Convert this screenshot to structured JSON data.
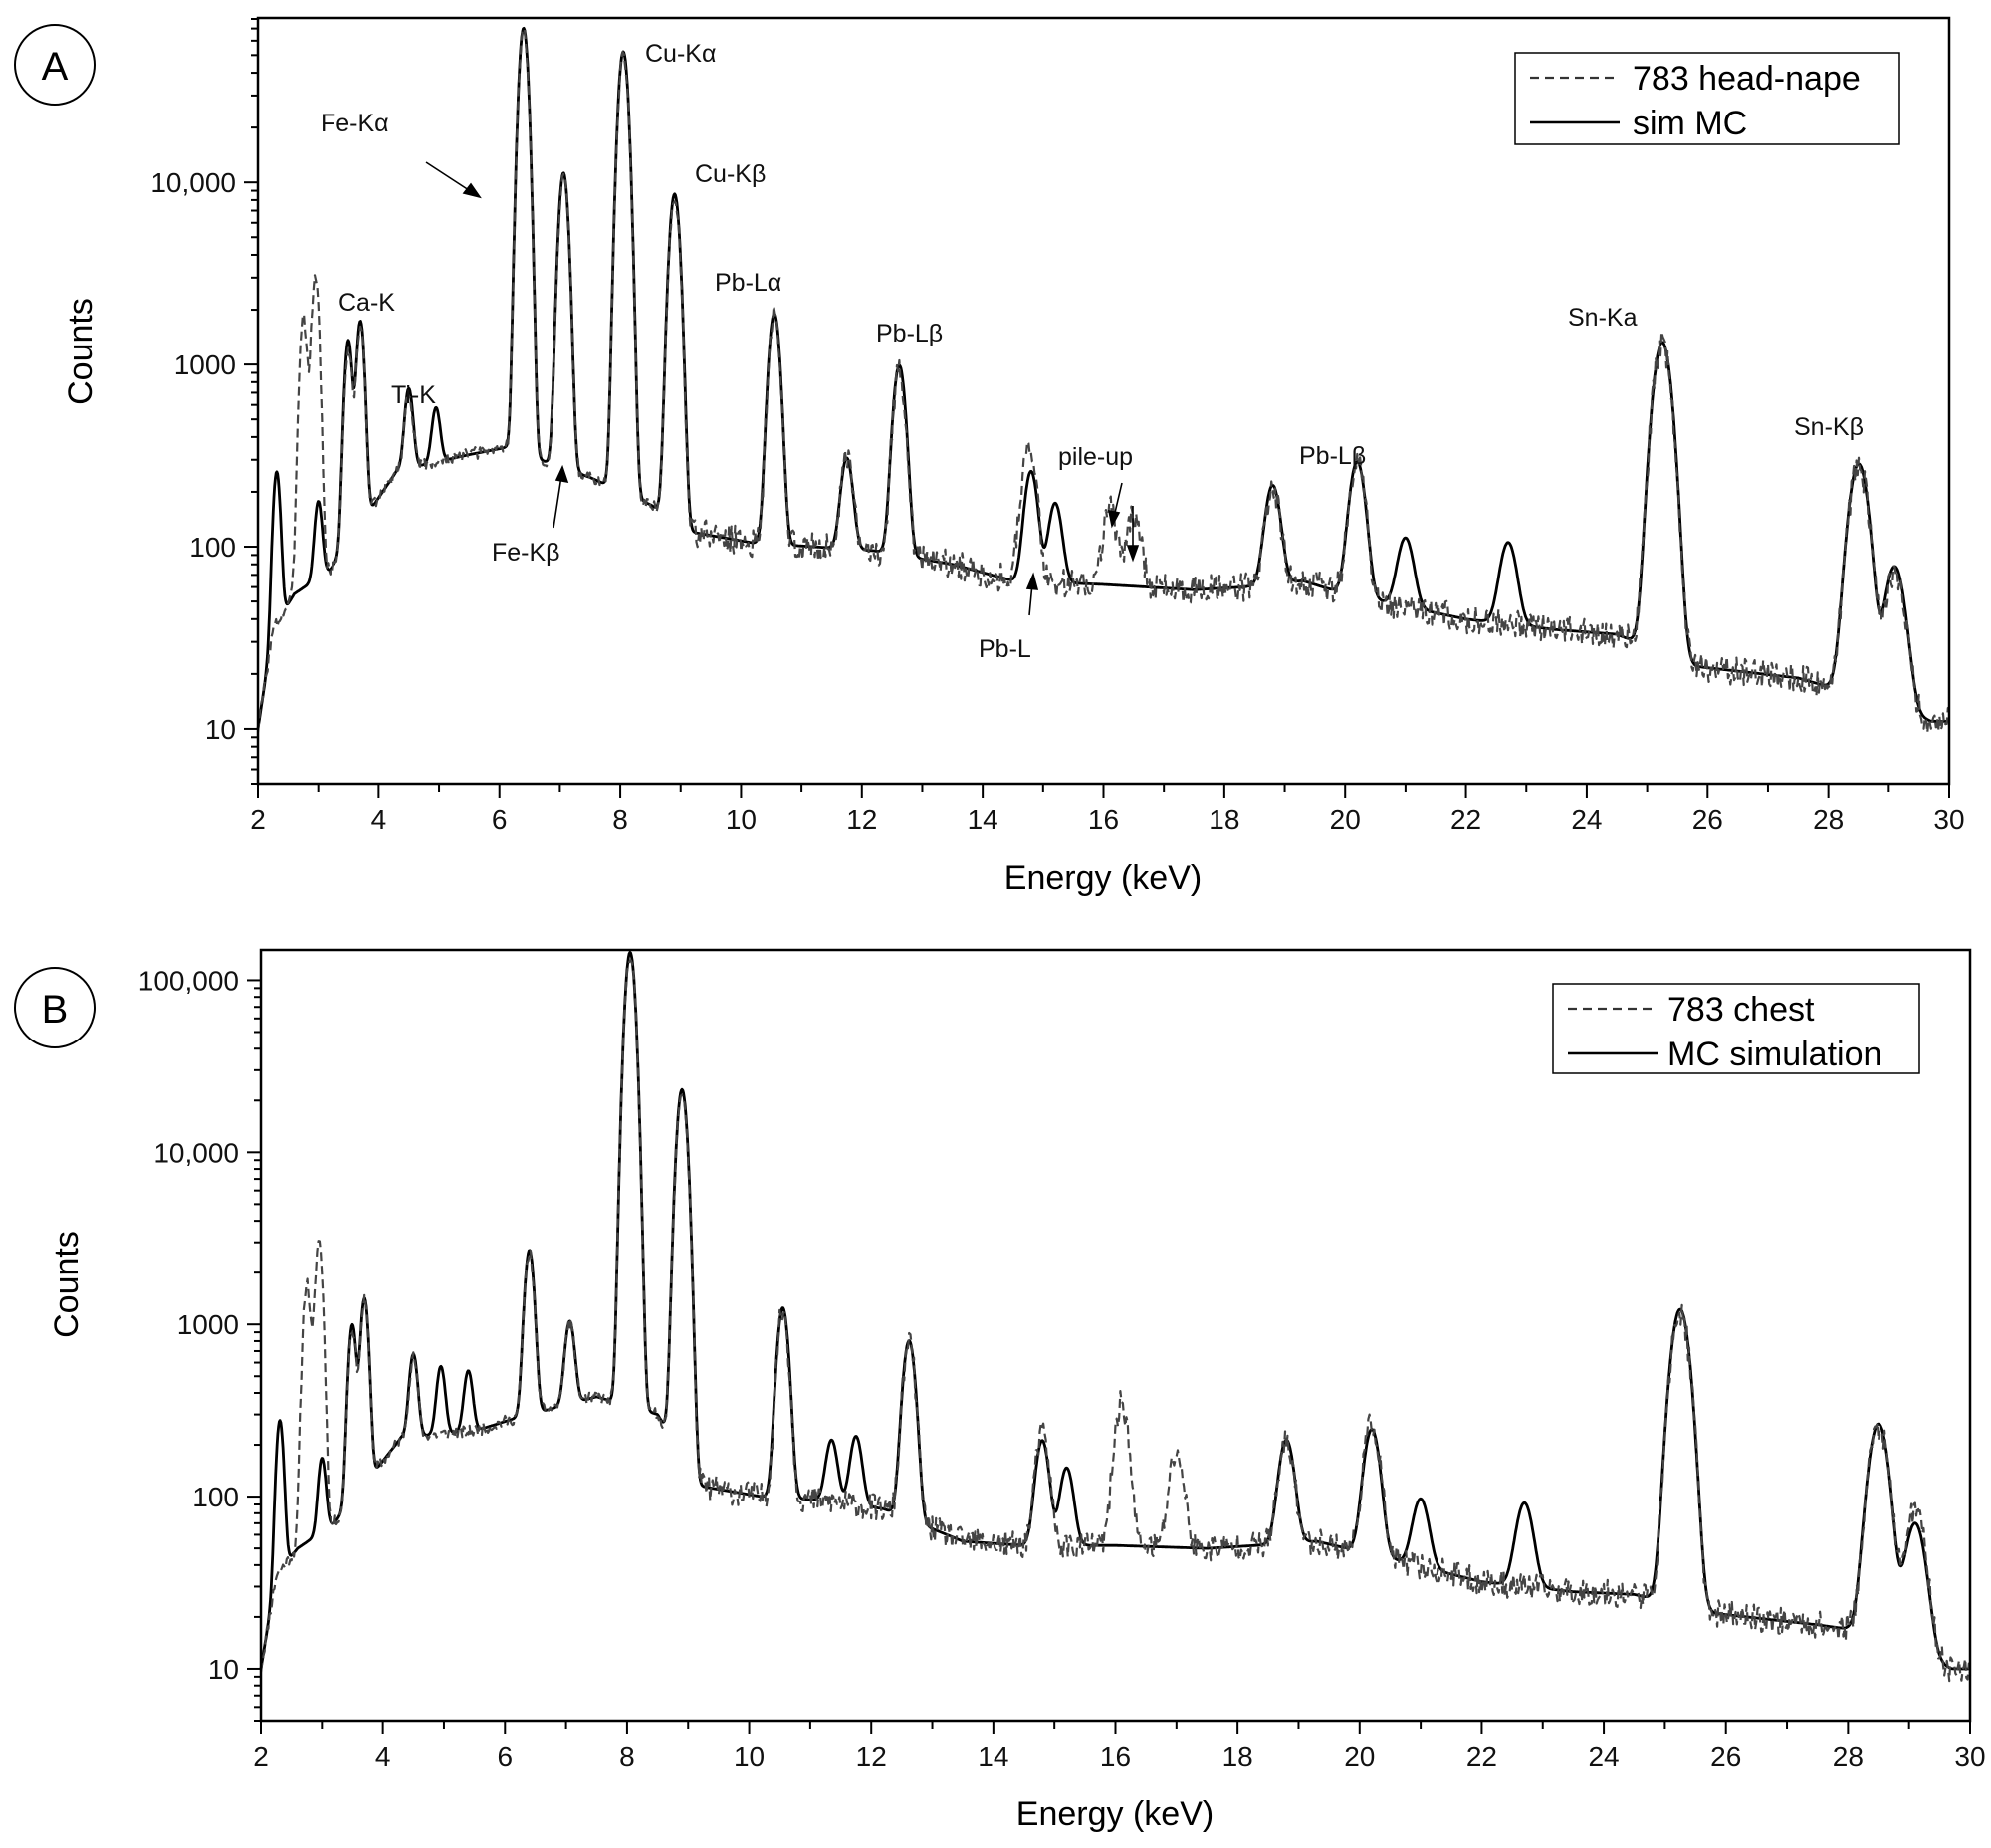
{
  "panels": [
    {
      "id": "A",
      "letter": "A",
      "xlabel": "Energy (keV)",
      "ylabel": "Counts",
      "legend": [
        {
          "label": "783 head-nape",
          "style": "dashed"
        },
        {
          "label": "sim MC",
          "style": "solid"
        }
      ],
      "annotations": [
        {
          "text": "Fe-Kα"
        },
        {
          "text": "Cu-Kα"
        },
        {
          "text": "Cu-Kβ"
        },
        {
          "text": "Ca-K"
        },
        {
          "text": "Ti-K"
        },
        {
          "text": "Fe-Kβ"
        },
        {
          "text": "Pb-Lα"
        },
        {
          "text": "Pb-Lβ"
        },
        {
          "text": "pile-up"
        },
        {
          "text": "Pb-Lβ"
        },
        {
          "text": "Pb-L"
        },
        {
          "text": "Sn-Ka"
        },
        {
          "text": "Sn-Kβ"
        }
      ]
    },
    {
      "id": "B",
      "letter": "B",
      "xlabel": "Energy (keV)",
      "ylabel": "Counts",
      "legend": [
        {
          "label": "783 chest",
          "style": "dashed"
        },
        {
          "label": "MC simulation",
          "style": "solid"
        }
      ],
      "annotations": []
    }
  ],
  "chart_data": [
    {
      "type": "line",
      "panel": "A",
      "xlabel": "Energy (keV)",
      "ylabel": "Counts",
      "xlim": [
        2,
        30
      ],
      "ylim": [
        5,
        80000
      ],
      "yscale": "log",
      "x_ticks": [
        2,
        4,
        6,
        8,
        10,
        12,
        14,
        16,
        18,
        20,
        22,
        24,
        26,
        28,
        30
      ],
      "y_ticks": [
        10,
        100,
        1000,
        10000
      ],
      "y_tick_labels": [
        "10",
        "100",
        "1000",
        "10,000"
      ],
      "grid": false,
      "legend_position": "top-right",
      "background": {
        "x": [
          2,
          2.25,
          2.6,
          3.2,
          4.3,
          5.5,
          6.1,
          7.5,
          8.5,
          9.2,
          10.2,
          11.2,
          12.2,
          13.5,
          14.5,
          16.0,
          17.5,
          18.3,
          19.3,
          20.0,
          22.0,
          23.5,
          24.5,
          25.8,
          27.5,
          28.0,
          29.7,
          30
        ],
        "counts": [
          10,
          35,
          55,
          75,
          260,
          320,
          350,
          240,
          170,
          120,
          105,
          100,
          95,
          80,
          65,
          62,
          58,
          60,
          65,
          55,
          40,
          35,
          33,
          22,
          19,
          17,
          11,
          11
        ]
      },
      "series": [
        {
          "name": "sim MC",
          "style": "solid",
          "peaks": [
            {
              "x": 2.31,
              "counts": 220
            },
            {
              "x": 3.0,
              "counts": 110
            },
            {
              "x": 3.5,
              "counts": 1250
            },
            {
              "x": 3.7,
              "counts": 1600
            },
            {
              "x": 4.5,
              "counts": 470
            },
            {
              "x": 4.95,
              "counts": 290
            },
            {
              "x": 6.4,
              "counts": 70000
            },
            {
              "x": 7.06,
              "counts": 11000
            },
            {
              "x": 8.05,
              "counts": 52000
            },
            {
              "x": 8.9,
              "counts": 8500
            },
            {
              "x": 10.55,
              "counts": 1800
            },
            {
              "x": 11.75,
              "counts": 210
            },
            {
              "x": 12.62,
              "counts": 900
            },
            {
              "x": 14.8,
              "counts": 195
            },
            {
              "x": 15.2,
              "counts": 110
            },
            {
              "x": 18.8,
              "counts": 155
            },
            {
              "x": 20.2,
              "counts": 240
            },
            {
              "x": 21.0,
              "counts": 65
            },
            {
              "x": 22.7,
              "counts": 68
            },
            {
              "x": 25.25,
              "counts": 1300
            },
            {
              "x": 28.5,
              "counts": 270
            },
            {
              "x": 29.1,
              "counts": 65
            }
          ]
        },
        {
          "name": "783 head-nape",
          "style": "dashed",
          "peaks": [
            {
              "x": 2.75,
              "counts": 1800
            },
            {
              "x": 2.95,
              "counts": 3000
            },
            {
              "x": 3.5,
              "counts": 1100
            },
            {
              "x": 3.7,
              "counts": 1500
            },
            {
              "x": 4.5,
              "counts": 430
            },
            {
              "x": 6.4,
              "counts": 68000
            },
            {
              "x": 7.06,
              "counts": 10500
            },
            {
              "x": 8.05,
              "counts": 50000
            },
            {
              "x": 8.9,
              "counts": 8000
            },
            {
              "x": 10.55,
              "counts": 1700
            },
            {
              "x": 11.75,
              "counts": 200
            },
            {
              "x": 12.62,
              "counts": 850
            },
            {
              "x": 14.7,
              "counts": 130
            },
            {
              "x": 14.8,
              "counts": 185
            },
            {
              "x": 16.1,
              "counts": 100
            },
            {
              "x": 16.5,
              "counts": 90
            },
            {
              "x": 18.8,
              "counts": 145
            },
            {
              "x": 20.2,
              "counts": 230
            },
            {
              "x": 25.25,
              "counts": 1250
            },
            {
              "x": 28.5,
              "counts": 260
            },
            {
              "x": 29.1,
              "counts": 60
            }
          ]
        }
      ]
    },
    {
      "type": "line",
      "panel": "B",
      "xlabel": "Energy (keV)",
      "ylabel": "Counts",
      "xlim": [
        2,
        30
      ],
      "ylim": [
        5,
        150000
      ],
      "yscale": "log",
      "x_ticks": [
        2,
        4,
        6,
        8,
        10,
        12,
        14,
        16,
        18,
        20,
        22,
        24,
        26,
        28,
        30
      ],
      "y_ticks": [
        10,
        100,
        1000,
        10000,
        100000
      ],
      "y_tick_labels": [
        "10",
        "100",
        "1000",
        "10,000",
        "100,000"
      ],
      "grid": false,
      "legend_position": "top-right",
      "background": {
        "x": [
          2,
          2.25,
          2.6,
          3.2,
          4.3,
          5.5,
          6.1,
          7.5,
          8.5,
          9.2,
          10.2,
          11.2,
          12.2,
          13.5,
          14.5,
          16.0,
          17.5,
          18.3,
          19.3,
          20.0,
          22.0,
          23.5,
          24.5,
          25.8,
          27.5,
          28.0,
          29.7,
          30
        ],
        "counts": [
          10,
          35,
          50,
          70,
          220,
          240,
          280,
          380,
          300,
          115,
          100,
          95,
          85,
          55,
          52,
          52,
          50,
          52,
          55,
          48,
          32,
          28,
          27,
          21,
          18,
          17,
          10,
          10
        ]
      },
      "series": [
        {
          "name": "MC simulation",
          "style": "solid",
          "peaks": [
            {
              "x": 2.31,
              "counts": 240
            },
            {
              "x": 3.0,
              "counts": 105
            },
            {
              "x": 3.5,
              "counts": 900
            },
            {
              "x": 3.7,
              "counts": 1300
            },
            {
              "x": 4.5,
              "counts": 450
            },
            {
              "x": 4.95,
              "counts": 340
            },
            {
              "x": 5.4,
              "counts": 300
            },
            {
              "x": 6.4,
              "counts": 2400
            },
            {
              "x": 7.06,
              "counts": 700
            },
            {
              "x": 8.05,
              "counts": 145000
            },
            {
              "x": 8.9,
              "counts": 23000
            },
            {
              "x": 10.55,
              "counts": 1150
            },
            {
              "x": 11.35,
              "counts": 120
            },
            {
              "x": 11.75,
              "counts": 135
            },
            {
              "x": 12.62,
              "counts": 730
            },
            {
              "x": 14.8,
              "counts": 160
            },
            {
              "x": 15.2,
              "counts": 95
            },
            {
              "x": 18.8,
              "counts": 160
            },
            {
              "x": 20.2,
              "counts": 200
            },
            {
              "x": 21.0,
              "counts": 58
            },
            {
              "x": 22.7,
              "counts": 62
            },
            {
              "x": 25.25,
              "counts": 1200
            },
            {
              "x": 28.5,
              "counts": 250
            },
            {
              "x": 29.1,
              "counts": 58
            }
          ]
        },
        {
          "name": "783 chest",
          "style": "dashed",
          "peaks": [
            {
              "x": 2.75,
              "counts": 1700
            },
            {
              "x": 2.95,
              "counts": 3000
            },
            {
              "x": 3.5,
              "counts": 850
            },
            {
              "x": 3.7,
              "counts": 1250
            },
            {
              "x": 4.5,
              "counts": 420
            },
            {
              "x": 6.4,
              "counts": 2300
            },
            {
              "x": 7.06,
              "counts": 680
            },
            {
              "x": 8.05,
              "counts": 140000
            },
            {
              "x": 8.9,
              "counts": 22000
            },
            {
              "x": 10.55,
              "counts": 1100
            },
            {
              "x": 12.62,
              "counts": 700
            },
            {
              "x": 14.8,
              "counts": 180
            },
            {
              "x": 16.1,
              "counts": 300
            },
            {
              "x": 17.0,
              "counts": 130
            },
            {
              "x": 18.8,
              "counts": 150
            },
            {
              "x": 20.2,
              "counts": 220
            },
            {
              "x": 25.25,
              "counts": 1150
            },
            {
              "x": 28.5,
              "counts": 240
            },
            {
              "x": 29.1,
              "counts": 70
            }
          ]
        }
      ]
    }
  ]
}
